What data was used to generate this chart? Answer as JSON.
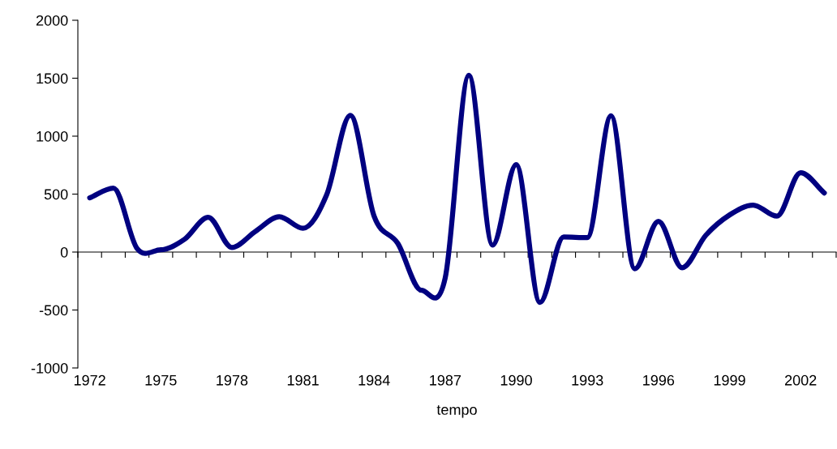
{
  "chart_data": {
    "type": "line",
    "xlabel": "tempo",
    "categories": [
      "1972",
      null,
      null,
      "1975",
      null,
      null,
      "1978",
      null,
      null,
      "1981",
      null,
      null,
      "1984",
      null,
      null,
      "1987",
      null,
      null,
      "1990",
      null,
      null,
      "1993",
      null,
      null,
      "1996",
      null,
      null,
      "1999",
      null,
      null,
      "2002",
      null
    ],
    "series": [
      {
        "color": "#000080",
        "values": [
          468,
          552,
          30,
          20,
          110,
          300,
          40,
          180,
          305,
          205,
          495,
          1180,
          310,
          75,
          -330,
          -225,
          1525,
          60,
          755,
          -435,
          130,
          125,
          1175,
          -145,
          265,
          -135,
          145,
          320,
          405,
          310,
          685,
          510
        ]
      }
    ],
    "ylim": [
      -1000,
      2000
    ],
    "yticks": [
      -1000,
      -500,
      0,
      500,
      1000,
      1500,
      2000
    ],
    "legend": false,
    "marker": "none",
    "line_style": "solid"
  }
}
